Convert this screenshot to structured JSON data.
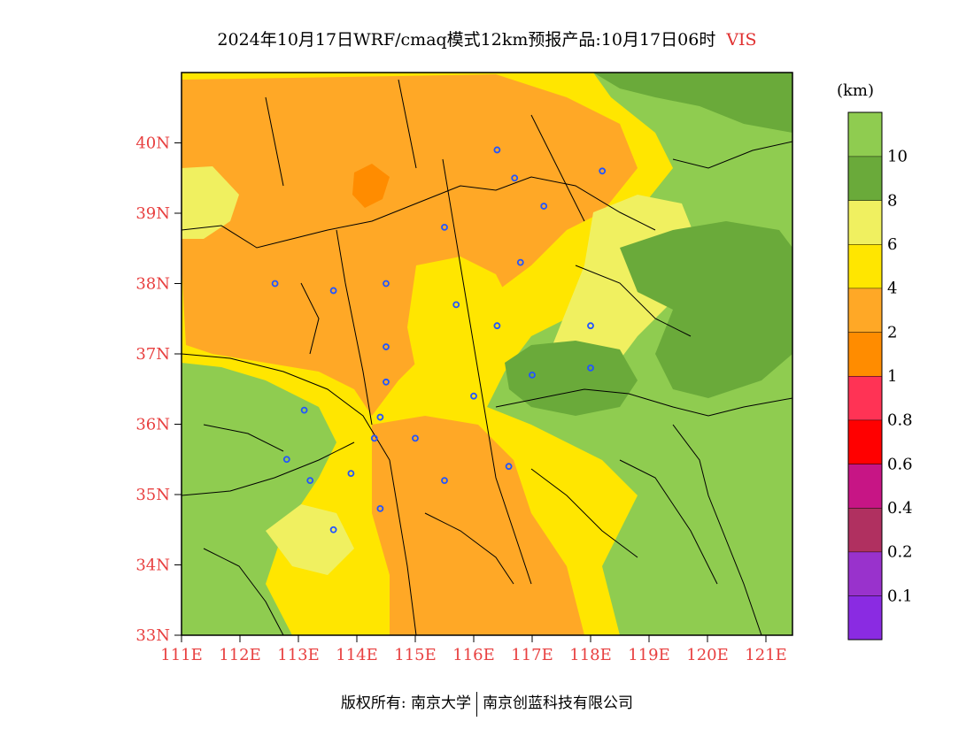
{
  "title": {
    "text": "2024年10月17日WRF/cmaq模式12km预报产品:10月17日06时",
    "variable": "VIS"
  },
  "colorbar": {
    "unit": "(km)",
    "bands": [
      {
        "color": "#8a2be2",
        "label": "0.1"
      },
      {
        "color": "#9932cc",
        "label": "0.2"
      },
      {
        "color": "#b03060",
        "label": "0.4"
      },
      {
        "color": "#c71585",
        "label": "0.6"
      },
      {
        "color": "#ff0000",
        "label": "0.8"
      },
      {
        "color": "#ff3355",
        "label": "1"
      },
      {
        "color": "#ff8c00",
        "label": "2"
      },
      {
        "color": "#ffa826",
        "label": "4"
      },
      {
        "color": "#ffe600",
        "label": "6"
      },
      {
        "color": "#f0f060",
        "label": "8"
      },
      {
        "color": "#6aaa3a",
        "label": "10"
      },
      {
        "color": "#8fcc50",
        "label": ""
      }
    ]
  },
  "axes": {
    "lon_labels": [
      "111E",
      "112E",
      "113E",
      "114E",
      "115E",
      "116E",
      "117E",
      "118E",
      "119E",
      "120E",
      "121E"
    ],
    "lat_labels": [
      "33N",
      "34N",
      "35N",
      "36N",
      "37N",
      "38N",
      "39N",
      "40N"
    ]
  },
  "city_markers": [
    {
      "lon": 116.4,
      "lat": 39.9
    },
    {
      "lon": 116.7,
      "lat": 39.5
    },
    {
      "lon": 117.2,
      "lat": 39.1
    },
    {
      "lon": 118.2,
      "lat": 39.6
    },
    {
      "lon": 115.5,
      "lat": 38.8
    },
    {
      "lon": 116.8,
      "lat": 38.3
    },
    {
      "lon": 114.5,
      "lat": 38.0
    },
    {
      "lon": 113.6,
      "lat": 37.9
    },
    {
      "lon": 112.6,
      "lat": 38.0
    },
    {
      "lon": 115.7,
      "lat": 37.7
    },
    {
      "lon": 116.4,
      "lat": 37.4
    },
    {
      "lon": 118.0,
      "lat": 37.4
    },
    {
      "lon": 118.0,
      "lat": 36.8
    },
    {
      "lon": 117.0,
      "lat": 36.7
    },
    {
      "lon": 114.5,
      "lat": 37.1
    },
    {
      "lon": 114.5,
      "lat": 36.6
    },
    {
      "lon": 116.0,
      "lat": 36.4
    },
    {
      "lon": 113.1,
      "lat": 36.2
    },
    {
      "lon": 114.4,
      "lat": 36.1
    },
    {
      "lon": 114.3,
      "lat": 35.8
    },
    {
      "lon": 115.0,
      "lat": 35.8
    },
    {
      "lon": 112.8,
      "lat": 35.5
    },
    {
      "lon": 113.2,
      "lat": 35.2
    },
    {
      "lon": 113.9,
      "lat": 35.3
    },
    {
      "lon": 115.5,
      "lat": 35.2
    },
    {
      "lon": 116.6,
      "lat": 35.4
    },
    {
      "lon": 114.4,
      "lat": 34.8
    },
    {
      "lon": 113.6,
      "lat": 34.5
    }
  ],
  "copyright": {
    "left": "版权所有: 南京大学",
    "right": "南京创蓝科技有限公司"
  }
}
